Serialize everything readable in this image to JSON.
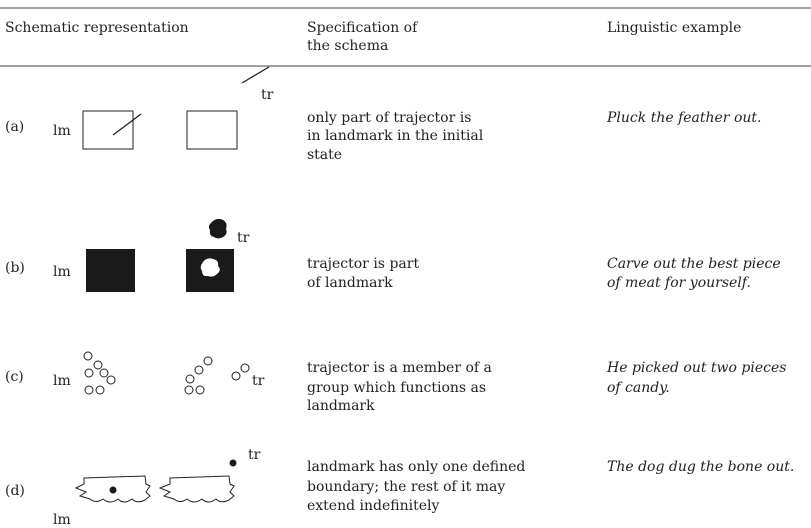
{
  "table": {
    "headers": [
      [
        "Schematic representation"
      ],
      [
        "Specification of",
        "the schema"
      ],
      [
        "Linguistic example"
      ]
    ],
    "rows": [
      {
        "label": "(a)",
        "schema_labels": [
          "lm",
          "tr"
        ],
        "specification": [
          "only part of trajector is",
          "in landmark in the initial",
          "state"
        ],
        "example": [
          "Pluck the feather out."
        ]
      },
      {
        "label": "(b)",
        "schema_labels": [
          "lm",
          "tr"
        ],
        "specification": [
          "trajector is part",
          "of landmark"
        ],
        "example": [
          "Carve out the best piece",
          "of meat for yourself."
        ]
      },
      {
        "label": "(c)",
        "schema_labels": [
          "lm",
          "tr"
        ],
        "specification": [
          "trajector is a member of a",
          "group which functions as",
          "landmark"
        ],
        "example": [
          "He picked out two pieces",
          "of candy."
        ]
      },
      {
        "label": "(d)",
        "schema_labels": [
          "lm",
          "tr"
        ],
        "specification": [
          "landmark has only one defined",
          "boundary; the rest of it may",
          "extend indefinitely"
        ],
        "example": [
          "The dog dug the bone out."
        ]
      }
    ]
  }
}
